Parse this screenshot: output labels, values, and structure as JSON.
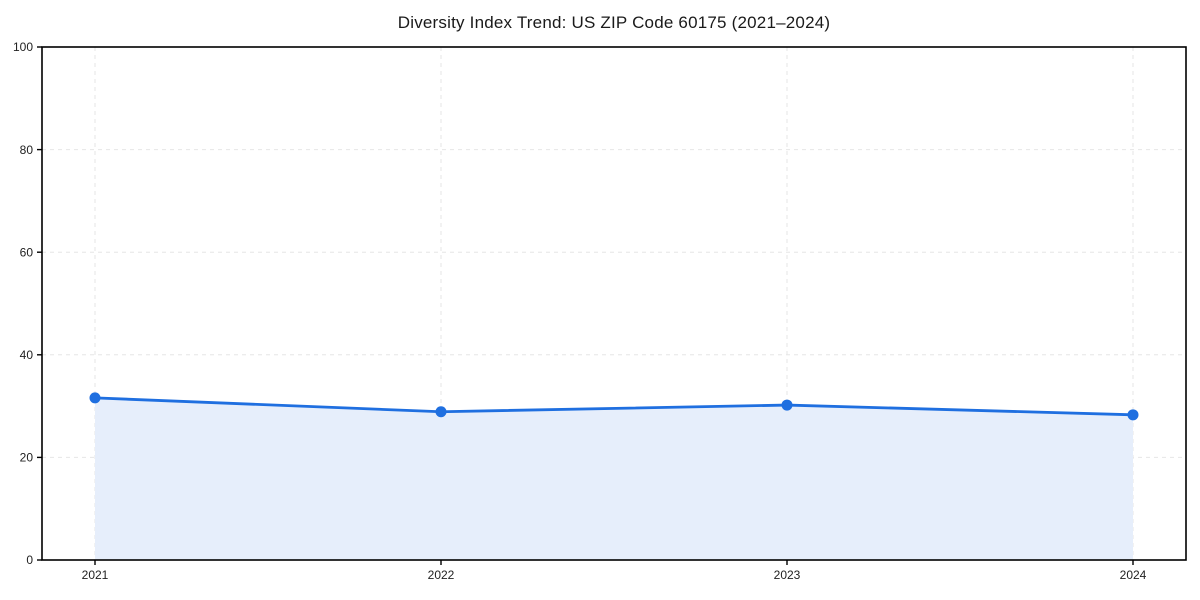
{
  "chart_data": {
    "type": "area",
    "title": "Diversity Index Trend: US ZIP Code 60175 (2021–2024)",
    "x": [
      "2021",
      "2022",
      "2023",
      "2024"
    ],
    "series": [
      {
        "name": "Diversity Index",
        "values": [
          31.6,
          28.9,
          30.2,
          28.3
        ]
      }
    ],
    "xlabel": "",
    "ylabel": "",
    "ylim": [
      0,
      100
    ],
    "yticks": [
      0,
      20,
      40,
      60,
      80,
      100
    ],
    "grid": true,
    "grid_style": "dashed",
    "legend_position": "none",
    "marker": "circle",
    "colors": {
      "line": "#1f6fe0",
      "marker": "#1f6fe0",
      "area_fill": "#e6eefb",
      "grid": "#e6e6e6",
      "axis": "#000000",
      "title_text": "#1a1a1a",
      "tick_text": "#222222",
      "background": "#ffffff"
    }
  }
}
